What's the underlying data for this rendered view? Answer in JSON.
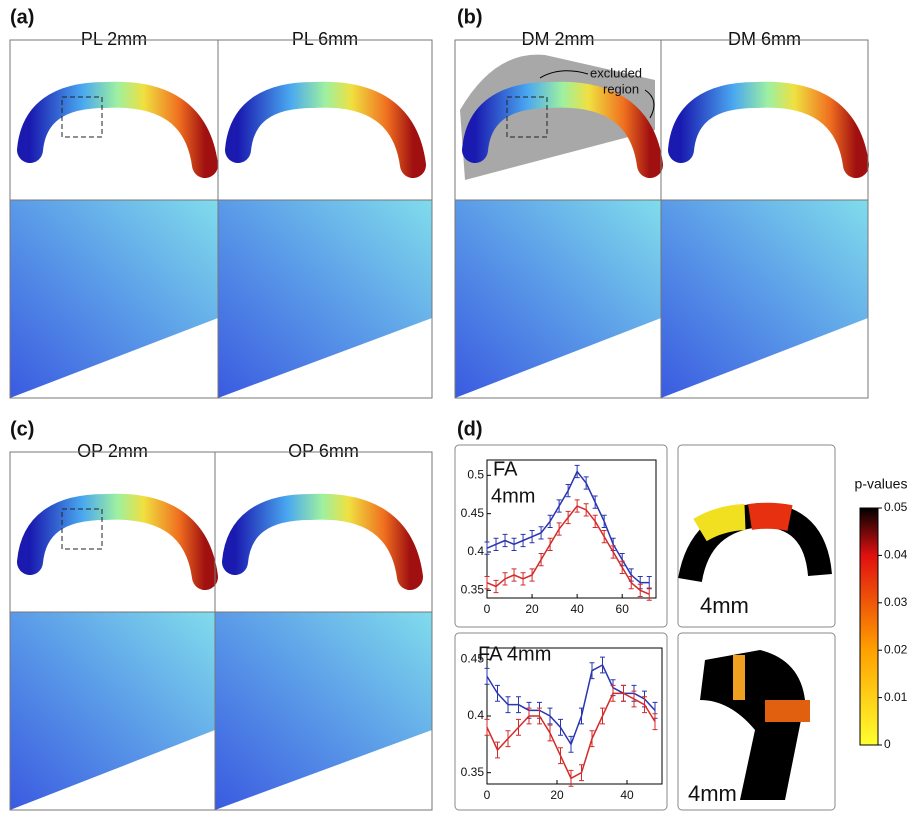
{
  "panels": [
    {
      "label": "(a)",
      "titles": [
        "PL 2mm",
        "PL 6mm"
      ]
    },
    {
      "label": "(b)",
      "titles": [
        "DM 2mm",
        "DM 6mm"
      ],
      "annotation": [
        "excluded",
        "region"
      ]
    },
    {
      "label": "(c)",
      "titles": [
        "OP 2mm",
        "OP 6mm"
      ]
    },
    {
      "label": "(d)",
      "image_labels": [
        "4mm",
        "4mm"
      ]
    }
  ],
  "colorbar": {
    "title": "p-values",
    "lim": [
      0,
      0.05
    ],
    "ticks": [
      0,
      0.01,
      0.02,
      0.03,
      0.04,
      0.05
    ]
  },
  "chart_data": [
    {
      "type": "line",
      "title": "FA",
      "subtitle": "4mm",
      "x": [
        0,
        4,
        8,
        12,
        16,
        20,
        24,
        28,
        32,
        36,
        40,
        44,
        48,
        52,
        56,
        60,
        64,
        68,
        72
      ],
      "xlim": [
        0,
        75
      ],
      "xticks": [
        0,
        20,
        40,
        60
      ],
      "ylim": [
        0.34,
        0.52
      ],
      "yticks": [
        0.35,
        0.4,
        0.45,
        0.5
      ],
      "series": [
        {
          "color": "#2a35b0",
          "values": [
            0.405,
            0.41,
            0.415,
            0.41,
            0.415,
            0.42,
            0.425,
            0.44,
            0.46,
            0.48,
            0.505,
            0.49,
            0.465,
            0.44,
            0.41,
            0.39,
            0.37,
            0.36,
            0.36
          ],
          "errors": [
            0.008,
            0.008,
            0.008,
            0.008,
            0.008,
            0.008,
            0.008,
            0.008,
            0.008,
            0.008,
            0.008,
            0.008,
            0.008,
            0.008,
            0.008,
            0.008,
            0.008,
            0.008,
            0.008
          ]
        },
        {
          "color": "#d42a2a",
          "values": [
            0.36,
            0.355,
            0.365,
            0.37,
            0.365,
            0.37,
            0.39,
            0.41,
            0.43,
            0.445,
            0.46,
            0.455,
            0.44,
            0.42,
            0.4,
            0.38,
            0.36,
            0.35,
            0.345
          ],
          "errors": [
            0.008,
            0.008,
            0.008,
            0.008,
            0.008,
            0.008,
            0.008,
            0.008,
            0.008,
            0.008,
            0.008,
            0.008,
            0.008,
            0.008,
            0.008,
            0.008,
            0.008,
            0.008,
            0.008
          ]
        }
      ]
    },
    {
      "type": "line",
      "title": "FA 4mm",
      "x": [
        0,
        3,
        6,
        9,
        12,
        15,
        18,
        21,
        24,
        27,
        30,
        33,
        36,
        39,
        42,
        45,
        48
      ],
      "xlim": [
        0,
        50
      ],
      "xticks": [
        0,
        20,
        40
      ],
      "ylim": [
        0.34,
        0.46
      ],
      "yticks": [
        0.35,
        0.4,
        0.45
      ],
      "series": [
        {
          "color": "#2a35b0",
          "values": [
            0.435,
            0.42,
            0.41,
            0.41,
            0.405,
            0.405,
            0.4,
            0.39,
            0.375,
            0.4,
            0.44,
            0.445,
            0.425,
            0.42,
            0.42,
            0.415,
            0.405
          ],
          "errors": [
            0.007,
            0.007,
            0.007,
            0.007,
            0.007,
            0.007,
            0.007,
            0.007,
            0.007,
            0.007,
            0.007,
            0.007,
            0.007,
            0.007,
            0.007,
            0.007,
            0.007
          ]
        },
        {
          "color": "#d42a2a",
          "values": [
            0.39,
            0.37,
            0.38,
            0.39,
            0.4,
            0.4,
            0.385,
            0.365,
            0.345,
            0.35,
            0.38,
            0.4,
            0.42,
            0.42,
            0.415,
            0.41,
            0.395
          ],
          "errors": [
            0.007,
            0.007,
            0.007,
            0.007,
            0.007,
            0.007,
            0.007,
            0.007,
            0.007,
            0.007,
            0.007,
            0.007,
            0.007,
            0.007,
            0.007,
            0.007,
            0.007
          ]
        }
      ]
    }
  ]
}
